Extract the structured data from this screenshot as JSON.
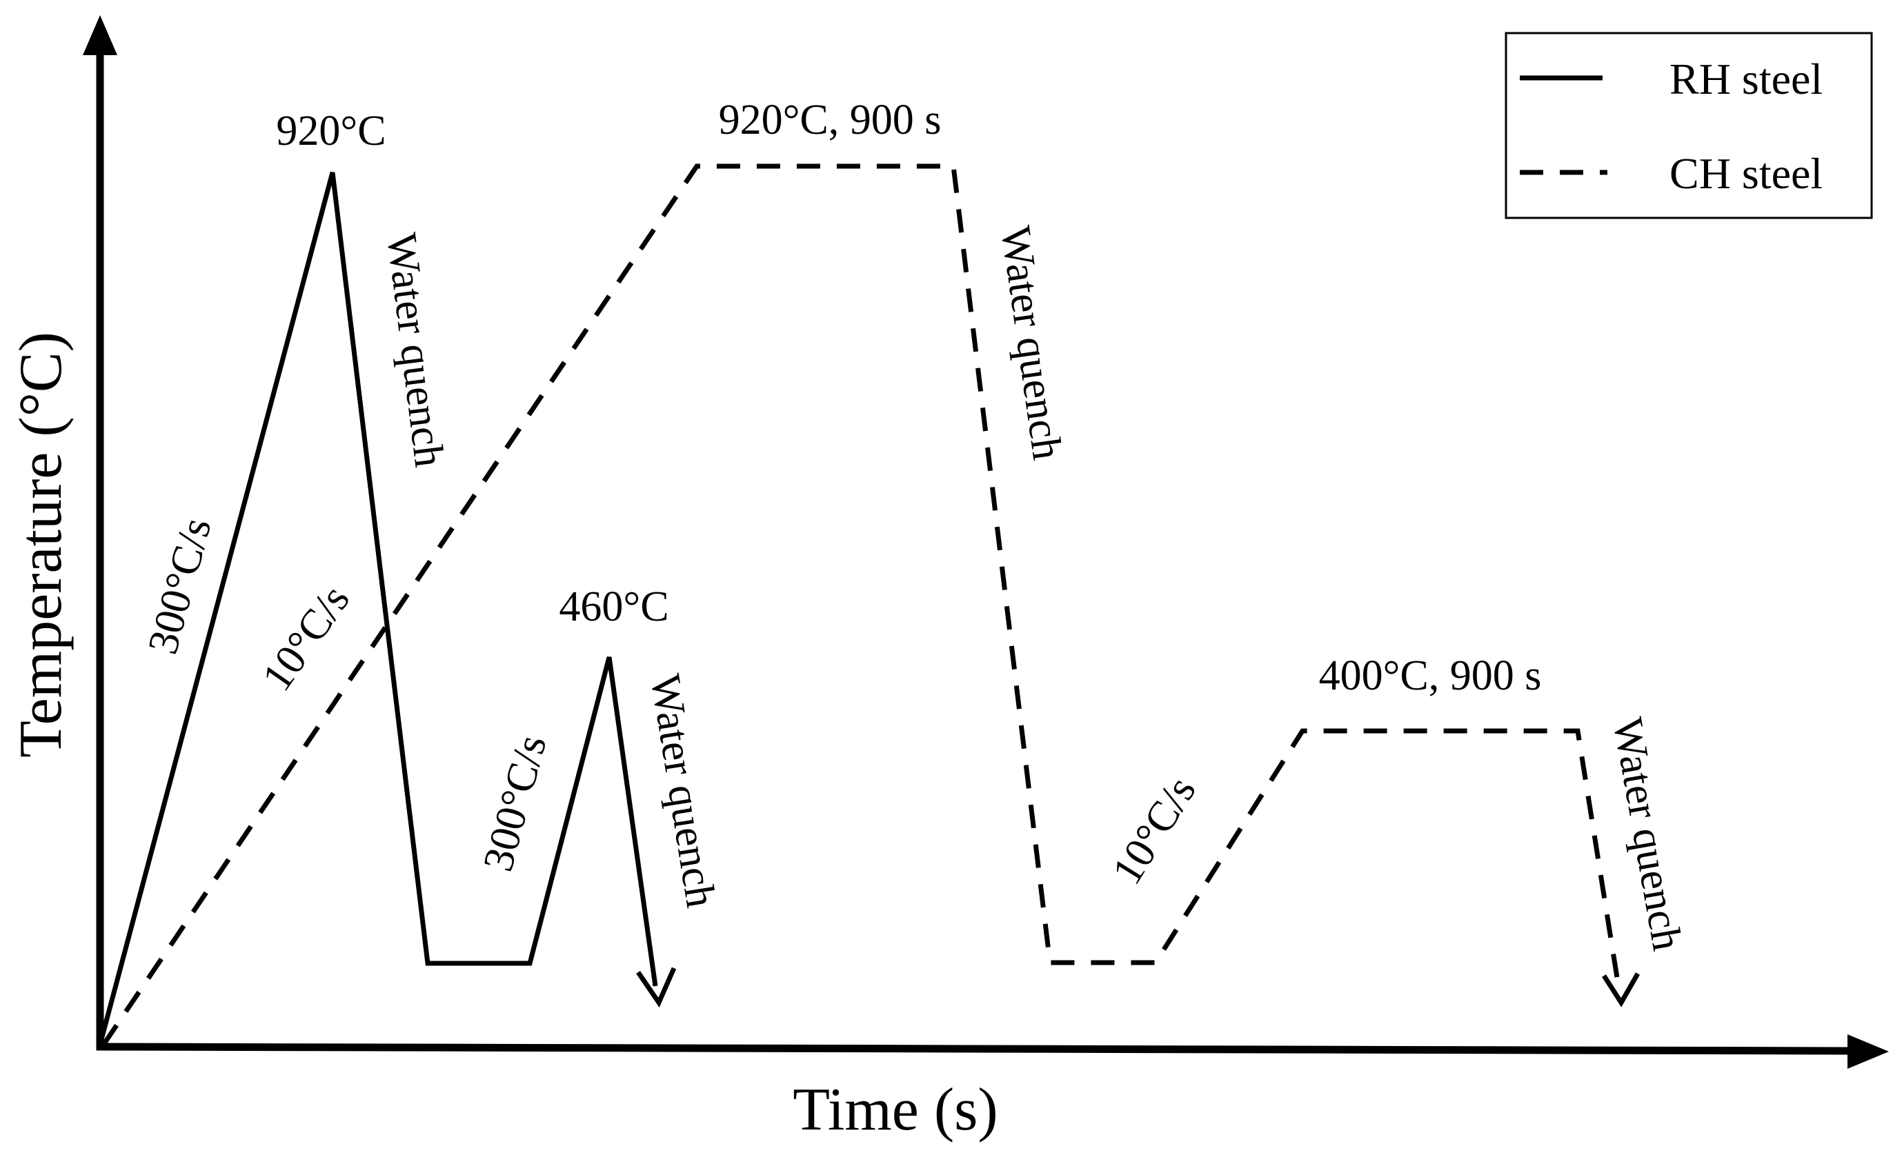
{
  "axes": {
    "x_label": "Time (s)",
    "y_label": "Temperature (°C)"
  },
  "legend": [
    {
      "label": "RH steel",
      "style": "solid"
    },
    {
      "label": "CH steel",
      "style": "dashed"
    }
  ],
  "rh_steel": {
    "peak_label": "920°C",
    "heating_rate": "300°C/s",
    "quench_1": "Water quench",
    "reheat_rate": "300°C/s",
    "reheat_peak": "460°C",
    "quench_2": "Water quench"
  },
  "ch_steel": {
    "heating_rate": "10°C/s",
    "austenitize_label": "920°C, 900 s",
    "quench_1": "Water quench",
    "reheat_rate": "10°C/s",
    "hold_label": "400°C, 900 s",
    "quench_2": "Water quench"
  },
  "colors": {
    "line": "#000000",
    "background": "#ffffff"
  }
}
